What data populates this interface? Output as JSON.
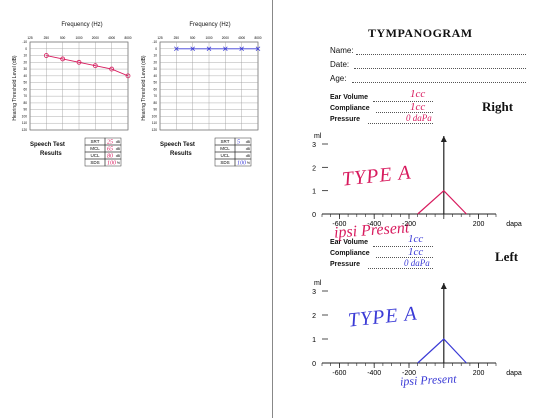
{
  "audiogram": {
    "freq_title": "Frequency (Hz)",
    "y_title": "Hearing Threshold Level (dB)",
    "freqs": [
      "125",
      "250",
      "500",
      "1000",
      "2000",
      "4000",
      "8000"
    ],
    "db_levels": [
      "-10",
      "0",
      "10",
      "20",
      "30",
      "40",
      "50",
      "60",
      "70",
      "80",
      "90",
      "100",
      "110",
      "120"
    ],
    "speech_test_label": "Speech Test",
    "results_label": "Results",
    "rows": [
      "SRT",
      "MCL",
      "UCL",
      "SDS"
    ],
    "units": [
      "dB",
      "dB",
      "dB",
      "%"
    ],
    "right_values": [
      "25",
      "65",
      "80",
      "100"
    ],
    "left_values": [
      "5",
      "",
      "",
      "100"
    ],
    "right_thresholds_db": [
      null,
      10,
      15,
      20,
      25,
      30,
      40
    ],
    "left_thresholds_db": [
      null,
      0,
      0,
      0,
      0,
      0,
      0
    ]
  },
  "tympanogram": {
    "title": "TYMPANOGRAM",
    "name_label": "Name:",
    "date_label": "Date:",
    "age_label": "Age:",
    "ear_volume_label": "Ear Volume",
    "compliance_label": "Compliance",
    "pressure_label": "Pressure",
    "right": {
      "heading": "Right",
      "ear_volume": "1cc",
      "compliance": "1cc",
      "pressure": "0 daPa",
      "type_note": "TYPE A",
      "reflex_note": "ipsi Present"
    },
    "left": {
      "heading": "Left",
      "ear_volume": "1cc",
      "compliance": "1cc",
      "pressure": "0 daPa",
      "type_note": "TYPE A",
      "reflex_note": "ipsi Present"
    },
    "y_axis_label": "ml",
    "y_ticks": [
      "0",
      "1",
      "2",
      "3"
    ],
    "x_ticks": [
      "-600",
      "-400",
      "-200",
      "0",
      "200"
    ],
    "x_unit": "dapa"
  },
  "colors": {
    "right_ink": "#d81b5e",
    "left_ink": "#3b3bd6"
  }
}
